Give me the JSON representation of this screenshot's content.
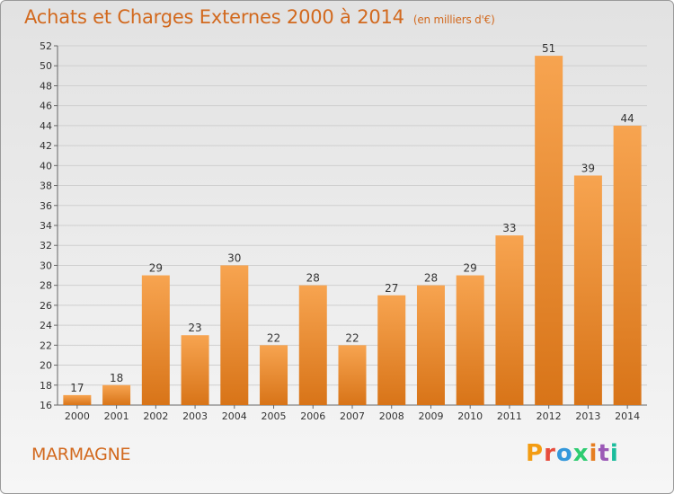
{
  "header": {
    "title": "Achats et Charges Externes 2000 à 2014",
    "unit": "(en milliers d'€)"
  },
  "footer": {
    "commune": "MARMAGNE",
    "logo": "Proxiti",
    "logo_colors": [
      "#f39c12",
      "#e74c3c",
      "#3498db",
      "#2ecc71",
      "#e67e22",
      "#9b59b6",
      "#1abc9c"
    ]
  },
  "chart_data": {
    "type": "bar",
    "categories": [
      "2000",
      "2001",
      "2002",
      "2003",
      "2004",
      "2005",
      "2006",
      "2007",
      "2008",
      "2009",
      "2010",
      "2011",
      "2012",
      "2013",
      "2014"
    ],
    "values": [
      17,
      18,
      29,
      23,
      30,
      22,
      28,
      22,
      27,
      28,
      29,
      33,
      51,
      39,
      44
    ],
    "ylim": [
      16,
      52
    ],
    "yticks": [
      16,
      18,
      20,
      22,
      24,
      26,
      28,
      30,
      32,
      34,
      36,
      38,
      40,
      42,
      44,
      46,
      48,
      50,
      52
    ],
    "grid": true,
    "bar_color_top": "#f7a450",
    "bar_color_bottom": "#d87418",
    "xlabel": "",
    "ylabel": ""
  }
}
